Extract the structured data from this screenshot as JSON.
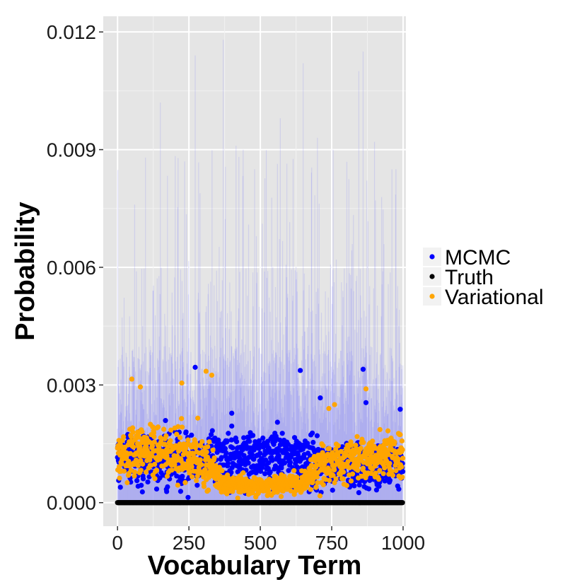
{
  "chart_data": {
    "type": "scatter",
    "xlabel": "Vocabulary Term",
    "ylabel": "Probability",
    "xlim": [
      -50,
      1010
    ],
    "ylim": [
      -0.0006,
      0.0124
    ],
    "x_ticks": [
      0,
      250,
      500,
      750,
      1000
    ],
    "x_tick_labels": [
      "0",
      "250",
      "500",
      "750",
      "1000"
    ],
    "y_ticks": [
      0.0,
      0.003,
      0.006,
      0.009,
      0.012
    ],
    "y_tick_labels": [
      "0.000",
      "0.003",
      "0.006",
      "0.009",
      "0.012"
    ],
    "grid": true,
    "legend_position": "right",
    "n_terms": 1000,
    "background_color": "#e5e5e5",
    "grid_color": "#ffffff",
    "legend": [
      {
        "name": "MCMC",
        "color": "#0000ff"
      },
      {
        "name": "Truth",
        "color": "#000000"
      },
      {
        "name": "Variational",
        "color": "#ffa500"
      }
    ],
    "band": {
      "name": "MCMC interval",
      "color": "#6666ff",
      "typical_upper": 0.003,
      "max_upper": 0.0118
    },
    "spikes": [
      {
        "x": 60,
        "y": 0.0076
      },
      {
        "x": 150,
        "y": 0.0102
      },
      {
        "x": 235,
        "y": 0.0087
      },
      {
        "x": 272,
        "y": 0.0114
      },
      {
        "x": 370,
        "y": 0.0118
      },
      {
        "x": 415,
        "y": 0.0091
      },
      {
        "x": 440,
        "y": 0.009
      },
      {
        "x": 480,
        "y": 0.0085
      },
      {
        "x": 570,
        "y": 0.0098
      },
      {
        "x": 650,
        "y": 0.0112
      },
      {
        "x": 700,
        "y": 0.0093
      },
      {
        "x": 755,
        "y": 0.009
      },
      {
        "x": 845,
        "y": 0.011
      },
      {
        "x": 860,
        "y": 0.0115
      },
      {
        "x": 900,
        "y": 0.0092
      },
      {
        "x": 975,
        "y": 0.0085
      }
    ],
    "series": [
      {
        "name": "Truth",
        "color": "#000000",
        "y_value": 0.0
      },
      {
        "name": "MCMC",
        "color": "#0000ff",
        "profile": [
          {
            "x": 0,
            "mean": 0.0011,
            "spread": 0.00055
          },
          {
            "x": 150,
            "mean": 0.0011,
            "spread": 0.0006
          },
          {
            "x": 300,
            "mean": 0.0011,
            "spread": 0.0006
          },
          {
            "x": 400,
            "mean": 0.0012,
            "spread": 0.0006
          },
          {
            "x": 550,
            "mean": 0.0012,
            "spread": 0.0006
          },
          {
            "x": 650,
            "mean": 0.0011,
            "spread": 0.0006
          },
          {
            "x": 800,
            "mean": 0.0009,
            "spread": 0.0005
          },
          {
            "x": 1000,
            "mean": 0.001,
            "spread": 0.0005
          }
        ],
        "outliers": [
          {
            "x": 272,
            "y": 0.00345
          },
          {
            "x": 640,
            "y": 0.00337
          },
          {
            "x": 860,
            "y": 0.0034
          },
          {
            "x": 710,
            "y": 0.00267
          },
          {
            "x": 400,
            "y": 0.00228
          },
          {
            "x": 560,
            "y": 0.00205
          },
          {
            "x": 870,
            "y": 0.00255
          },
          {
            "x": 990,
            "y": 0.00238
          }
        ]
      },
      {
        "name": "Variational",
        "color": "#ffa500",
        "profile": [
          {
            "x": 0,
            "mean": 0.0012,
            "spread": 0.0006
          },
          {
            "x": 200,
            "mean": 0.0013,
            "spread": 0.0006
          },
          {
            "x": 320,
            "mean": 0.001,
            "spread": 0.0006
          },
          {
            "x": 360,
            "mean": 0.0005,
            "spread": 0.00025
          },
          {
            "x": 500,
            "mean": 0.0004,
            "spread": 0.0002
          },
          {
            "x": 650,
            "mean": 0.0005,
            "spread": 0.00025
          },
          {
            "x": 700,
            "mean": 0.0009,
            "spread": 0.0005
          },
          {
            "x": 850,
            "mean": 0.0011,
            "spread": 0.0005
          },
          {
            "x": 1000,
            "mean": 0.0012,
            "spread": 0.0005
          }
        ],
        "outliers": [
          {
            "x": 50,
            "y": 0.00315
          },
          {
            "x": 310,
            "y": 0.00335
          },
          {
            "x": 330,
            "y": 0.00325
          },
          {
            "x": 80,
            "y": 0.00295
          },
          {
            "x": 225,
            "y": 0.00305
          },
          {
            "x": 870,
            "y": 0.0029
          },
          {
            "x": 760,
            "y": 0.0025
          },
          {
            "x": 740,
            "y": 0.0024
          }
        ]
      }
    ]
  }
}
